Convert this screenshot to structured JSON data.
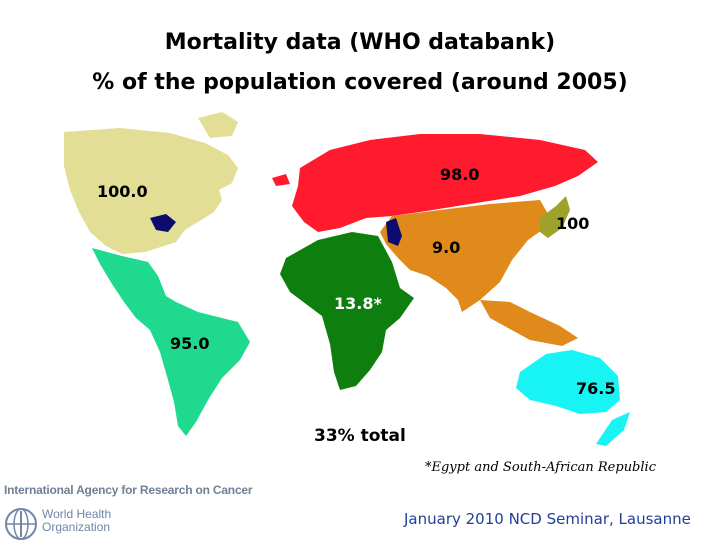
{
  "title": {
    "line1": "Mortality data (WHO databank)",
    "line2": "%  of the population covered (around 2005)"
  },
  "regions": [
    {
      "name": "North America",
      "value": "100.0",
      "color": "#e2de96"
    },
    {
      "name": "Latin America",
      "value": "95.0",
      "color": "#1fd98f"
    },
    {
      "name": "Europe",
      "value": "98.0",
      "color": "#ff1a2e"
    },
    {
      "name": "Asia",
      "value": "9.0",
      "color": "#e08a1c"
    },
    {
      "name": "Japan",
      "value": "100",
      "color": "#9ea22a"
    },
    {
      "name": "Africa",
      "value": "13.8*",
      "color": "#0e7f0e"
    },
    {
      "name": "Oceania",
      "value": "76.5",
      "color": "#18f4f4"
    }
  ],
  "lakes_color": "#0c0c6e",
  "total": "33% total",
  "footnote": "*Egypt and South-African Republic",
  "footer": "January 2010 NCD Seminar, Lausanne",
  "logos": {
    "iarc": "International Agency for Research on Cancer",
    "who_line1": "World Health",
    "who_line2": "Organization"
  }
}
